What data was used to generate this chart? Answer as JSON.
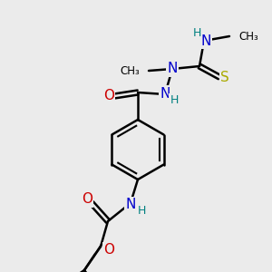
{
  "bg_color": "#ebebeb",
  "atom_colors": {
    "C": "#000000",
    "N": "#0000cc",
    "O": "#cc0000",
    "S": "#aaaa00",
    "H": "#008080"
  },
  "bond_color": "#000000",
  "figsize": [
    3.0,
    3.0
  ],
  "dpi": 100
}
